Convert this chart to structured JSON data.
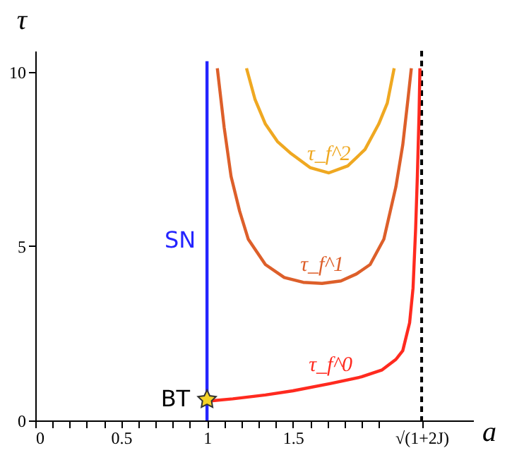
{
  "chart_data": {
    "type": "line",
    "xlabel": "a",
    "ylabel": "τ",
    "xlim": [
      0,
      2.55
    ],
    "ylim": [
      0,
      10.6
    ],
    "xticks": [
      0,
      {
        "value": 0.1,
        "label": null
      },
      {
        "value": 0.2,
        "label": null
      },
      {
        "value": 0.3,
        "label": null
      },
      {
        "value": 0.4,
        "label": null
      },
      0.5,
      {
        "value": 0.6,
        "label": null
      },
      {
        "value": 0.7,
        "label": null
      },
      {
        "value": 0.8,
        "label": null
      },
      {
        "value": 0.9,
        "label": null
      },
      1,
      {
        "value": 1.1,
        "label": null
      },
      {
        "value": 1.2,
        "label": null
      },
      {
        "value": 1.3,
        "label": null
      },
      {
        "value": 1.4,
        "label": null
      },
      1.5,
      {
        "value": 1.6,
        "label": null
      },
      {
        "value": 1.7,
        "label": null
      },
      {
        "value": 1.8,
        "label": null
      },
      {
        "value": 1.9,
        "label": null
      },
      {
        "value": 2.0,
        "label": null
      },
      {
        "value": 2.25,
        "label": "√(1+2J)"
      }
    ],
    "yticks": [
      0,
      5,
      10
    ],
    "series": [
      {
        "name": "SN",
        "color": "#2424ff",
        "x": [
          1,
          1
        ],
        "values": [
          0,
          10.3
        ]
      },
      {
        "name": "τ_f^0",
        "color": "#ff2a1f",
        "x": [
          1,
          1.15,
          1.34,
          1.5,
          1.72,
          1.9,
          2.02,
          2.1,
          2.14,
          2.18,
          2.2,
          2.215,
          2.225,
          2.235,
          2.24
        ],
        "values": [
          0.55,
          0.62,
          0.73,
          0.85,
          1.06,
          1.25,
          1.45,
          1.75,
          2.0,
          2.8,
          3.8,
          5.5,
          7.0,
          8.8,
          10.1
        ]
      },
      {
        "name": "τ_f^1",
        "color": "#dd5f2a",
        "x": [
          1.06,
          1.1,
          1.14,
          1.19,
          1.24,
          1.34,
          1.45,
          1.56,
          1.67,
          1.78,
          1.87,
          1.95,
          2.03,
          2.1,
          2.14,
          2.17,
          2.19
        ],
        "values": [
          10.1,
          8.4,
          7.0,
          6.0,
          5.2,
          4.47,
          4.1,
          3.96,
          3.93,
          4.0,
          4.2,
          4.47,
          5.2,
          6.7,
          7.9,
          9.2,
          10.1
        ]
      },
      {
        "name": "τ_f^2",
        "color": "#efa821",
        "x": [
          1.23,
          1.28,
          1.34,
          1.41,
          1.49,
          1.6,
          1.71,
          1.82,
          1.92,
          2.0,
          2.05,
          2.09
        ],
        "values": [
          10.1,
          9.2,
          8.5,
          8.0,
          7.65,
          7.25,
          7.1,
          7.3,
          7.77,
          8.5,
          9.1,
          10.1
        ]
      },
      {
        "type": "scatter",
        "name": "BT",
        "color": "#f5d327",
        "marker": "star",
        "x": [
          1
        ],
        "values": [
          0.6
        ]
      }
    ],
    "ref_lines": [
      {
        "axis": "x",
        "value": 2.25,
        "color": "#000000",
        "line_style": "dashed"
      }
    ]
  }
}
